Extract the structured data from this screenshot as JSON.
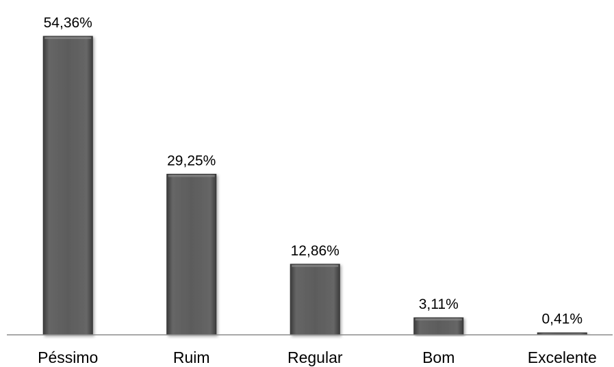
{
  "chart_data": {
    "type": "bar",
    "categories": [
      "Péssimo",
      "Ruim",
      "Regular",
      "Bom",
      "Excelente"
    ],
    "values": [
      54.36,
      29.25,
      12.86,
      3.11,
      0.41
    ],
    "data_labels": [
      "54,36%",
      "29,25%",
      "12,86%",
      "3,11%",
      "0,41%"
    ],
    "title": "",
    "xlabel": "",
    "ylabel": "",
    "ylim": [
      0,
      54.36
    ],
    "grid": false,
    "legend": "none",
    "bar_color": "#5a5a5a"
  }
}
